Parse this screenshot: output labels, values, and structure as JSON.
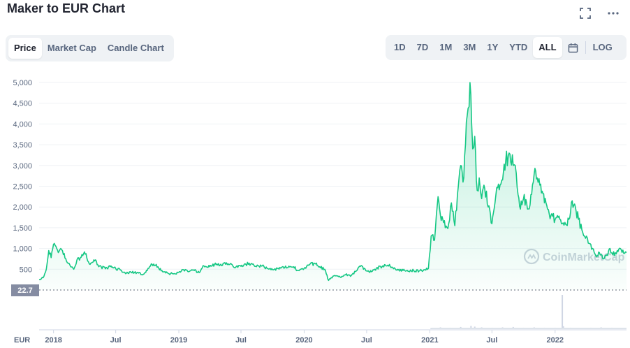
{
  "header": {
    "title": "Maker to EUR Chart",
    "fullscreen_icon": "fullscreen-icon",
    "more_icon": "more-options-icon"
  },
  "tabs": [
    {
      "label": "Price",
      "active": true
    },
    {
      "label": "Market Cap",
      "active": false
    },
    {
      "label": "Candle Chart",
      "active": false
    }
  ],
  "ranges": [
    {
      "label": "1D",
      "active": false
    },
    {
      "label": "7D",
      "active": false
    },
    {
      "label": "1M",
      "active": false
    },
    {
      "label": "3M",
      "active": false
    },
    {
      "label": "1Y",
      "active": false
    },
    {
      "label": "YTD",
      "active": false
    },
    {
      "label": "ALL",
      "active": true
    }
  ],
  "calendar_icon": "calendar-icon",
  "log_label": "LOG",
  "watermark": "CoinMarketCap",
  "colors": {
    "line": "#16c784",
    "fill_top": "#16c784",
    "grid": "#eff2f5",
    "text": "#58667e",
    "badge": "#858ca2"
  },
  "chart_data": {
    "type": "area",
    "series": [
      {
        "x": [
          "2017-11-20",
          "2017-11-27",
          "2017-12-04",
          "2017-12-11",
          "2017-12-18",
          "2017-12-25",
          "2018-01-01",
          "2018-01-08",
          "2018-01-15",
          "2018-01-22",
          "2018-02-01",
          "2018-02-10",
          "2018-02-20",
          "2018-03-01",
          "2018-03-10",
          "2018-03-20",
          "2018-04-01",
          "2018-04-15",
          "2018-05-01",
          "2018-05-15",
          "2018-06-01",
          "2018-06-15",
          "2018-07-01",
          "2018-07-15",
          "2018-08-01",
          "2018-08-15",
          "2018-09-01",
          "2018-09-15",
          "2018-10-01",
          "2018-10-15",
          "2018-11-01",
          "2018-11-15",
          "2018-12-01",
          "2018-12-15",
          "2019-01-01",
          "2019-01-15",
          "2019-02-01",
          "2019-02-15",
          "2019-03-01",
          "2019-03-15",
          "2019-04-01",
          "2019-04-15",
          "2019-05-01",
          "2019-05-15",
          "2019-06-01",
          "2019-06-15",
          "2019-07-01",
          "2019-07-15",
          "2019-08-01",
          "2019-08-15",
          "2019-09-01",
          "2019-09-15",
          "2019-10-01",
          "2019-10-15",
          "2019-11-01",
          "2019-11-15",
          "2019-12-01",
          "2019-12-15",
          "2020-01-01",
          "2020-01-15",
          "2020-02-01",
          "2020-02-15",
          "2020-03-01",
          "2020-03-12",
          "2020-03-20",
          "2020-04-01",
          "2020-04-15",
          "2020-05-01",
          "2020-05-15",
          "2020-06-01",
          "2020-06-15",
          "2020-07-01",
          "2020-07-15",
          "2020-08-01",
          "2020-08-15",
          "2020-09-01",
          "2020-09-15",
          "2020-10-01",
          "2020-10-15",
          "2020-11-01",
          "2020-11-15",
          "2020-12-01",
          "2020-12-15",
          "2020-12-28",
          "2021-01-05",
          "2021-01-15",
          "2021-01-25",
          "2021-02-01",
          "2021-02-08",
          "2021-02-15",
          "2021-02-25",
          "2021-03-05",
          "2021-03-15",
          "2021-03-25",
          "2021-04-01",
          "2021-04-10",
          "2021-04-20",
          "2021-04-28",
          "2021-05-03",
          "2021-05-06",
          "2021-05-12",
          "2021-05-19",
          "2021-05-25",
          "2021-06-01",
          "2021-06-10",
          "2021-06-20",
          "2021-07-01",
          "2021-07-10",
          "2021-07-20",
          "2021-08-01",
          "2021-08-10",
          "2021-08-20",
          "2021-09-01",
          "2021-09-07",
          "2021-09-15",
          "2021-09-22",
          "2021-10-01",
          "2021-10-10",
          "2021-10-20",
          "2021-11-01",
          "2021-11-10",
          "2021-11-20",
          "2021-12-01",
          "2021-12-10",
          "2021-12-20",
          "2022-01-01",
          "2022-01-10",
          "2022-01-22",
          "2022-02-01",
          "2022-02-10",
          "2022-02-20",
          "2022-03-01",
          "2022-03-10",
          "2022-03-20",
          "2022-03-28",
          "2022-04-05",
          "2022-04-15",
          "2022-04-25",
          "2022-05-01",
          "2022-05-10",
          "2022-05-20",
          "2022-06-01",
          "2022-06-10",
          "2022-06-18",
          "2022-06-25",
          "2022-07-01",
          "2022-07-10",
          "2022-07-20",
          "2022-07-28"
        ],
        "y": [
          250,
          280,
          330,
          500,
          950,
          780,
          1100,
          1050,
          900,
          1000,
          880,
          660,
          560,
          500,
          720,
          780,
          920,
          630,
          700,
          580,
          510,
          560,
          520,
          480,
          400,
          430,
          420,
          370,
          470,
          620,
          560,
          440,
          400,
          390,
          430,
          490,
          450,
          470,
          420,
          580,
          560,
          620,
          600,
          660,
          640,
          540,
          570,
          620,
          640,
          560,
          580,
          520,
          490,
          520,
          560,
          540,
          560,
          470,
          520,
          600,
          640,
          560,
          500,
          230,
          300,
          340,
          310,
          370,
          330,
          460,
          590,
          460,
          440,
          540,
          560,
          600,
          540,
          480,
          470,
          450,
          470,
          460,
          490,
          520,
          1300,
          1200,
          2250,
          1800,
          1700,
          1500,
          1600,
          2100,
          1550,
          2500,
          3000,
          2700,
          4200,
          5000,
          4000,
          3400,
          3700,
          2400,
          2700,
          2200,
          2450,
          2000,
          1600,
          2100,
          2550,
          2650,
          3100,
          3300,
          3000,
          3000,
          2300,
          1950,
          2200,
          2100,
          2050,
          2800,
          2700,
          2550,
          2100,
          1950,
          1800,
          1700,
          1750,
          1600,
          1580,
          1700,
          2150,
          2000,
          1700,
          1450,
          1300,
          1250,
          1100,
          900,
          800,
          900,
          750,
          850,
          1000,
          850,
          900,
          950,
          1000,
          880,
          900
        ]
      }
    ],
    "y_ticks": [
      "500",
      "1,000",
      "1,500",
      "2,000",
      "2,500",
      "3,000",
      "3,500",
      "4,000",
      "4,500",
      "5,000"
    ],
    "y_tick_values": [
      500,
      1000,
      1500,
      2000,
      2500,
      3000,
      3500,
      4000,
      4500,
      5000
    ],
    "x_ticks": [
      "2018",
      "Jul",
      "2019",
      "Jul",
      "2020",
      "Jul",
      "2021",
      "Jul",
      "2022"
    ],
    "x_tick_dates": [
      "2018-01-01",
      "2018-07-01",
      "2019-01-01",
      "2019-07-01",
      "2020-01-01",
      "2020-07-01",
      "2021-01-01",
      "2021-07-01",
      "2022-01-01"
    ],
    "x_range": [
      "2017-11-20",
      "2022-07-28"
    ],
    "ylim": [
      0,
      5000
    ],
    "grid": true,
    "baseline_label": "22.7",
    "currency_label": "EUR",
    "volume": {
      "x": [
        "2021-01-05",
        "2021-02-01",
        "2021-03-01",
        "2021-04-01",
        "2021-05-01",
        "2021-05-12",
        "2021-06-01",
        "2021-07-01",
        "2021-08-01",
        "2021-09-01",
        "2021-10-01",
        "2021-11-01",
        "2021-12-01",
        "2022-01-01",
        "2022-01-22",
        "2022-01-25",
        "2022-02-15",
        "2022-03-15",
        "2022-04-15",
        "2022-05-15",
        "2022-06-15",
        "2022-07-15"
      ],
      "y": [
        3,
        5,
        4,
        6,
        9,
        7,
        5,
        4,
        5,
        6,
        4,
        5,
        4,
        4,
        95,
        8,
        4,
        3,
        4,
        5,
        4,
        3
      ]
    }
  }
}
